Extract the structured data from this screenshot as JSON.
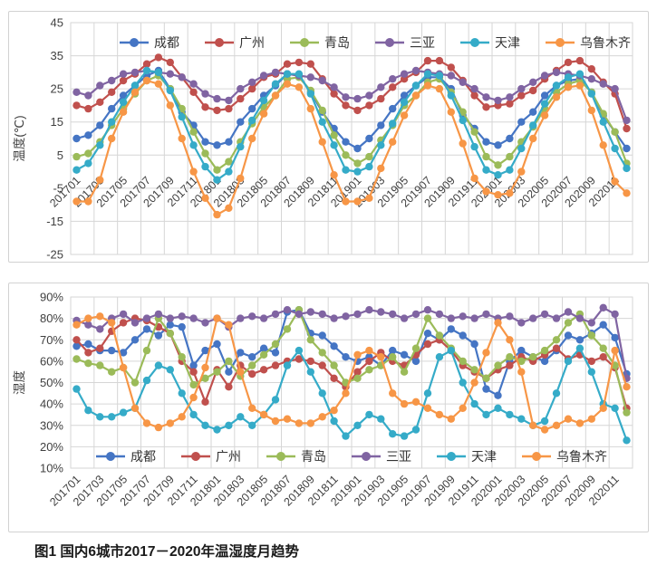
{
  "figure_caption": "图1 国内6城市2017－2020年温湿度月趋势",
  "chart_data": [
    {
      "id": "temperature",
      "type": "line",
      "title": "",
      "y_axis_title": "温度(℃)",
      "ylim": [
        -25,
        45
      ],
      "y_step": 10,
      "grid": true,
      "legend_position": "top-inside",
      "y_tick_labels": [
        "45",
        "35",
        "25",
        "15",
        "5",
        "-5",
        "-15",
        "-25"
      ],
      "x_tick_labels": [
        "201701",
        "201703",
        "201705",
        "201707",
        "201709",
        "201711",
        "201801",
        "201803",
        "201805",
        "201807",
        "201809",
        "201811",
        "201901",
        "201903",
        "201905",
        "201907",
        "201909",
        "201911",
        "202001",
        "202003",
        "202005",
        "202007",
        "202009",
        "202011"
      ],
      "series": [
        {
          "name": "成都",
          "color": "#4575C4",
          "values": [
            10,
            11,
            14,
            19,
            23,
            26,
            29,
            30.5,
            25,
            18,
            14,
            9,
            8,
            9,
            15,
            19,
            23,
            26,
            29.5,
            29,
            24,
            18,
            13,
            9,
            7,
            10,
            14,
            19,
            23,
            26,
            28.5,
            28.5,
            25,
            17,
            13,
            9,
            8,
            10,
            15,
            18,
            23,
            26,
            27.5,
            28,
            24,
            17,
            12,
            7
          ]
        },
        {
          "name": "广州",
          "color": "#C0504D",
          "values": [
            20,
            19,
            21,
            24,
            27.5,
            29.5,
            32.5,
            34.5,
            33,
            28.5,
            24,
            19.5,
            18.5,
            19,
            22,
            25,
            28.5,
            29.5,
            32.5,
            33,
            32.5,
            28,
            23.5,
            20,
            18.5,
            20,
            22,
            25.5,
            28,
            30,
            33.5,
            33.5,
            31.5,
            27.5,
            23,
            19.5,
            20,
            20.5,
            23,
            24.5,
            28,
            30.5,
            33,
            33.5,
            31,
            27,
            23.5,
            13
          ]
        },
        {
          "name": "青岛",
          "color": "#9BBB59",
          "values": [
            4.5,
            5.5,
            9,
            14,
            19,
            23.5,
            27.5,
            29,
            25,
            19,
            12,
            5.5,
            0.5,
            3,
            9,
            14.5,
            19.5,
            23,
            28,
            28.5,
            24.5,
            18.5,
            11,
            5,
            2.5,
            4.5,
            9.5,
            14,
            20,
            23,
            27,
            28,
            24,
            18,
            12,
            4.5,
            2,
            4.5,
            9,
            13.5,
            19,
            24,
            26.5,
            27.5,
            24,
            17.5,
            12,
            2.5
          ]
        },
        {
          "name": "三亚",
          "color": "#8064A2",
          "values": [
            24,
            23,
            26,
            27.5,
            29.5,
            30,
            30.5,
            30,
            29.5,
            28.5,
            26.5,
            23.5,
            22,
            21.5,
            25,
            27,
            29,
            30,
            29.5,
            29,
            28.5,
            27.5,
            25.5,
            22.5,
            22,
            23,
            25.5,
            28,
            29.5,
            30.5,
            30,
            29.5,
            29,
            27,
            25,
            22.5,
            21.5,
            22.5,
            25,
            27,
            29,
            30,
            29.5,
            29,
            28,
            26.5,
            25,
            15.5
          ]
        },
        {
          "name": "天津",
          "color": "#35ABC8",
          "values": [
            0.5,
            2.5,
            8,
            15,
            21,
            26,
            30.5,
            30,
            24.5,
            16.5,
            8,
            1.5,
            -2.5,
            0,
            7.5,
            15.5,
            21.5,
            26.5,
            29.5,
            29.5,
            23.5,
            15,
            8,
            0.5,
            0,
            1.5,
            8,
            14.5,
            21,
            26,
            29.5,
            29,
            23,
            15.5,
            7.5,
            0.5,
            -1,
            0.5,
            7,
            14,
            20.5,
            26,
            28.5,
            29.5,
            23.5,
            15,
            7,
            1
          ]
        },
        {
          "name": "乌鲁木齐",
          "color": "#F79646",
          "values": [
            -9,
            -9,
            -2.5,
            10,
            18,
            24,
            27.5,
            26.5,
            20,
            10,
            0,
            -8,
            -13,
            -11,
            -2,
            10,
            17.5,
            23,
            26.5,
            25.5,
            19,
            9,
            -1,
            -9,
            -9,
            -8,
            1,
            9,
            17,
            23,
            26,
            25,
            18,
            8.5,
            -2,
            -6,
            -7,
            -6.5,
            0,
            10,
            17,
            22.5,
            25.5,
            26,
            18.5,
            8,
            -3,
            -6.5
          ]
        }
      ]
    },
    {
      "id": "humidity",
      "type": "line",
      "title": "",
      "y_axis_title": "湿度",
      "ylim": [
        10,
        90
      ],
      "y_step": 10,
      "grid": true,
      "legend_position": "bottom-inside",
      "y_tick_labels": [
        "90%",
        "80%",
        "70%",
        "60%",
        "50%",
        "40%",
        "30%",
        "20%",
        "10%"
      ],
      "x_tick_labels": [
        "201701",
        "201703",
        "201705",
        "201707",
        "201709",
        "201711",
        "201801",
        "201803",
        "201805",
        "201807",
        "201809",
        "201811",
        "201901",
        "201903",
        "201905",
        "201907",
        "201909",
        "201911",
        "202001",
        "202003",
        "202005",
        "202007",
        "202009",
        "202011"
      ],
      "series": [
        {
          "name": "成都",
          "color": "#4575C4",
          "values": [
            67,
            68,
            65,
            65,
            64,
            70,
            75,
            72,
            77,
            76,
            58,
            65,
            68,
            55,
            64,
            62,
            66,
            64,
            83,
            84,
            73,
            72,
            67,
            62,
            60,
            62,
            58,
            65,
            63,
            60,
            73,
            70,
            75,
            72,
            68,
            47,
            44,
            60,
            65,
            62,
            60,
            65,
            72,
            70,
            73,
            77,
            71,
            54
          ]
        },
        {
          "name": "广州",
          "color": "#C0504D",
          "values": [
            70,
            64,
            66,
            74,
            78,
            80,
            79,
            76,
            73,
            60,
            55,
            41,
            56,
            48,
            58,
            54,
            56,
            58,
            60,
            61,
            60,
            58,
            52,
            48,
            55,
            60,
            64,
            60,
            58,
            63,
            68,
            70,
            65,
            58,
            55,
            52,
            56,
            58,
            62,
            60,
            63,
            66,
            61,
            63,
            60,
            62,
            57,
            38
          ]
        },
        {
          "name": "青岛",
          "color": "#9BBB59",
          "values": [
            61,
            59,
            58,
            55,
            57,
            50,
            65,
            80,
            73,
            62,
            49,
            52,
            55,
            60,
            53,
            58,
            63,
            68,
            75,
            84,
            70,
            64,
            58,
            50,
            52,
            56,
            58,
            62,
            55,
            66,
            80,
            72,
            66,
            60,
            56,
            52,
            58,
            62,
            60,
            62,
            65,
            70,
            78,
            82,
            72,
            66,
            58,
            36
          ]
        },
        {
          "name": "三亚",
          "color": "#8064A2",
          "values": [
            79,
            77,
            75,
            80,
            82,
            78,
            80,
            82,
            80,
            81,
            80,
            78,
            80,
            76,
            80,
            81,
            80,
            82,
            84,
            82,
            83,
            82,
            80,
            81,
            82,
            84,
            83,
            82,
            80,
            82,
            84,
            82,
            80,
            81,
            80,
            82,
            80,
            81,
            78,
            80,
            82,
            80,
            83,
            80,
            78,
            85,
            82,
            52
          ]
        },
        {
          "name": "天津",
          "color": "#35ABC8",
          "values": [
            47,
            37,
            34,
            34,
            36,
            38,
            51,
            58,
            56,
            45,
            35,
            30,
            28,
            30,
            34,
            30,
            35,
            42,
            58,
            65,
            55,
            45,
            32,
            25,
            30,
            35,
            33,
            26,
            25,
            28,
            45,
            62,
            65,
            50,
            40,
            35,
            38,
            35,
            33,
            30,
            32,
            45,
            60,
            66,
            55,
            40,
            38,
            23
          ]
        },
        {
          "name": "乌鲁木齐",
          "color": "#F79646",
          "values": [
            77,
            80,
            81,
            78,
            57,
            38,
            31,
            29,
            31,
            34,
            43,
            57,
            80,
            77,
            55,
            38,
            35,
            32,
            33,
            31,
            31,
            34,
            37,
            45,
            63,
            65,
            62,
            45,
            40,
            41,
            38,
            35,
            33,
            38,
            50,
            64,
            78,
            70,
            55,
            30,
            28,
            30,
            33,
            31,
            33,
            38,
            65,
            48
          ]
        }
      ]
    }
  ]
}
